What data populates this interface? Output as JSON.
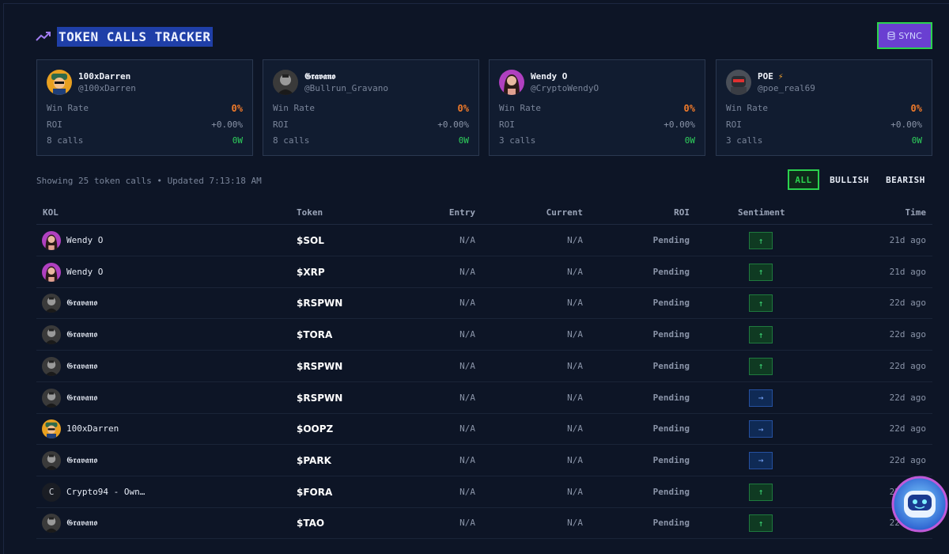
{
  "header": {
    "title": "TOKEN CALLS TRACKER",
    "sync_label": "SYNC"
  },
  "kols": [
    {
      "name": "100xDarren",
      "handle": "@100xDarren",
      "win_rate_label": "Win Rate",
      "win_rate": "0%",
      "roi_label": "ROI",
      "roi": "+0.00%",
      "calls": "8 calls",
      "wins": "0W",
      "avatar": "darren-avatar"
    },
    {
      "name": "𝕲𝖗𝖆𝖛𝖆𝖓𝖔",
      "handle": "@Bullrun_Gravano",
      "win_rate_label": "Win Rate",
      "win_rate": "0%",
      "roi_label": "ROI",
      "roi": "+0.00%",
      "calls": "8 calls",
      "wins": "0W",
      "avatar": "gravano-avatar"
    },
    {
      "name": "Wendy O",
      "handle": "@CryptoWendyO",
      "win_rate_label": "Win Rate",
      "win_rate": "0%",
      "roi_label": "ROI",
      "roi": "+0.00%",
      "calls": "3 calls",
      "wins": "0W",
      "avatar": "wendy-avatar"
    },
    {
      "name": "POE",
      "handle": "@poe_real69",
      "win_rate_label": "Win Rate",
      "win_rate": "0%",
      "roi_label": "ROI",
      "roi": "+0.00%",
      "calls": "3 calls",
      "wins": "0W",
      "avatar": "poe-avatar",
      "badge": "⚡"
    }
  ],
  "info": {
    "text": "Showing 25 token calls • Updated 7:13:18 AM"
  },
  "filters": {
    "all": "ALL",
    "bullish": "BULLISH",
    "bearish": "BEARISH"
  },
  "table": {
    "headers": {
      "kol": "KOL",
      "token": "Token",
      "entry": "Entry",
      "current": "Current",
      "roi": "ROI",
      "sentiment": "Sentiment",
      "time": "Time"
    },
    "rows": [
      {
        "kol": "Wendy O",
        "token": "$SOL",
        "entry": "N/A",
        "current": "N/A",
        "roi": "Pending",
        "sentiment": "↑",
        "time": "21d ago"
      },
      {
        "kol": "Wendy O",
        "token": "$XRP",
        "entry": "N/A",
        "current": "N/A",
        "roi": "Pending",
        "sentiment": "↑",
        "time": "21d ago"
      },
      {
        "kol": "𝕲𝖗𝖆𝖛𝖆𝖓𝖔",
        "token": "$RSPWN",
        "entry": "N/A",
        "current": "N/A",
        "roi": "Pending",
        "sentiment": "↑",
        "time": "22d ago"
      },
      {
        "kol": "𝕲𝖗𝖆𝖛𝖆𝖓𝖔",
        "token": "$TORA",
        "entry": "N/A",
        "current": "N/A",
        "roi": "Pending",
        "sentiment": "↑",
        "time": "22d ago"
      },
      {
        "kol": "𝕲𝖗𝖆𝖛𝖆𝖓𝖔",
        "token": "$RSPWN",
        "entry": "N/A",
        "current": "N/A",
        "roi": "Pending",
        "sentiment": "↑",
        "time": "22d ago"
      },
      {
        "kol": "𝕲𝖗𝖆𝖛𝖆𝖓𝖔",
        "token": "$RSPWN",
        "entry": "N/A",
        "current": "N/A",
        "roi": "Pending",
        "sentiment": "→",
        "time": "22d ago"
      },
      {
        "kol": "100xDarren",
        "token": "$OOPZ",
        "entry": "N/A",
        "current": "N/A",
        "roi": "Pending",
        "sentiment": "→",
        "time": "22d ago"
      },
      {
        "kol": "𝕲𝖗𝖆𝖛𝖆𝖓𝖔",
        "token": "$PARK",
        "entry": "N/A",
        "current": "N/A",
        "roi": "Pending",
        "sentiment": "→",
        "time": "22d ago"
      },
      {
        "kol": "Crypto94 - Own…",
        "token": "$FORA",
        "entry": "N/A",
        "current": "N/A",
        "roi": "Pending",
        "sentiment": "↑",
        "time": "22d ago",
        "avatar_letter": "C"
      },
      {
        "kol": "𝕲𝖗𝖆𝖛𝖆𝖓𝖔",
        "token": "$TAO",
        "entry": "N/A",
        "current": "N/A",
        "roi": "Pending",
        "sentiment": "↑",
        "time": "22d ago"
      }
    ]
  },
  "colors": {
    "accent_green": "#2bd24e",
    "accent_purple": "#6a3fd1",
    "orange": "#f07a2a",
    "background": "#0d1526"
  }
}
